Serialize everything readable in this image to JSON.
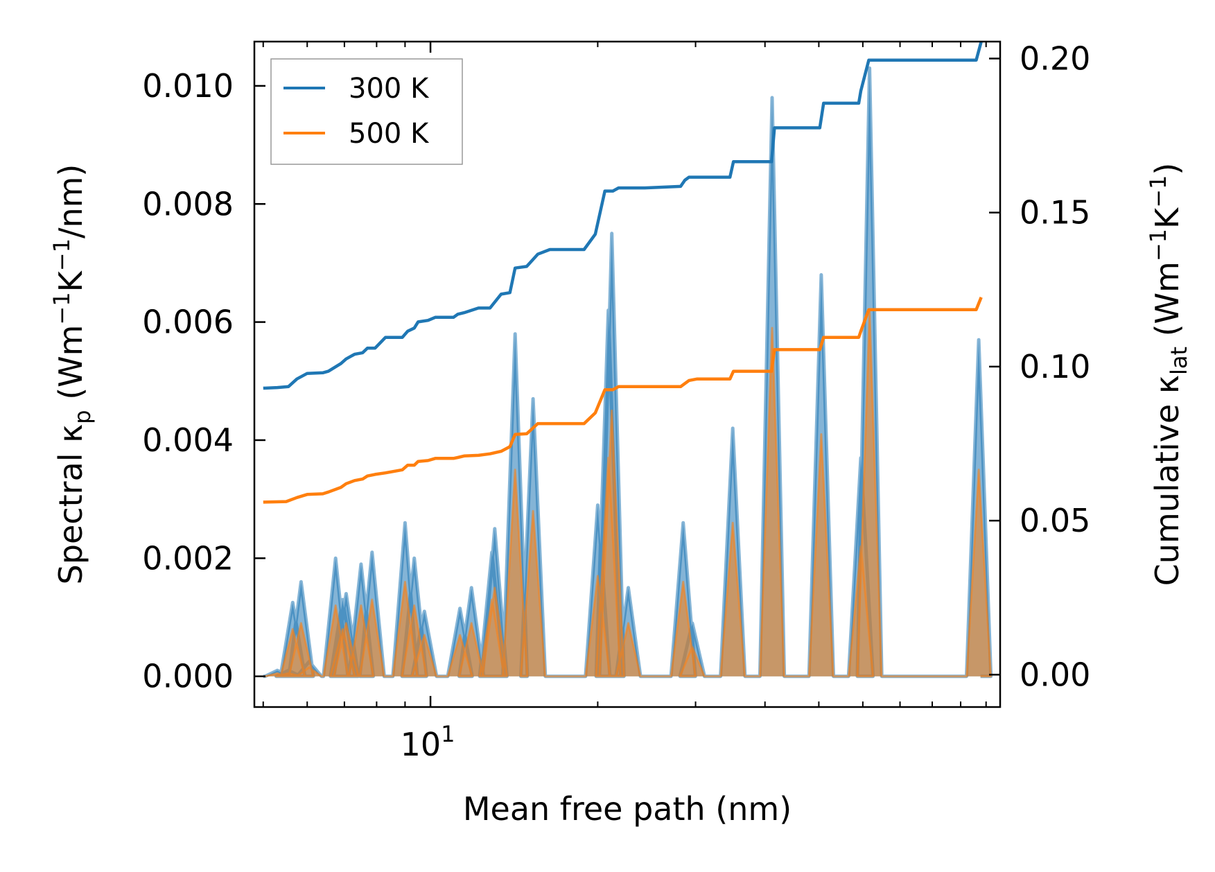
{
  "chart_data": {
    "type": "line",
    "xscale": "log",
    "xlabel": "Mean free path (nm)",
    "ylabel_left": {
      "main": "Spectral κ",
      "sub": "p",
      "unit_open": " (Wm",
      "s1": "−1",
      "mid": "K",
      "s2": "−1",
      "unit_close": "/nm)"
    },
    "ylabel_right": {
      "main": "Cumulative κ",
      "sub": "lat",
      "unit_open": " (Wm",
      "s1": "−1",
      "mid": "K",
      "s2": "−1",
      "unit_close": ")"
    },
    "xlim": [
      4.82,
      106
    ],
    "ylim_left": [
      -0.00052,
      0.01075
    ],
    "ylim_right": [
      -0.0105,
      0.2055
    ],
    "xticks": [
      {
        "base": "10",
        "exp": "1",
        "value": 10
      }
    ],
    "yticks_left": [
      {
        "value": 0.0,
        "label": "0.000"
      },
      {
        "value": 0.002,
        "label": "0.002"
      },
      {
        "value": 0.004,
        "label": "0.004"
      },
      {
        "value": 0.006,
        "label": "0.006"
      },
      {
        "value": 0.008,
        "label": "0.008"
      },
      {
        "value": 0.01,
        "label": "0.010"
      }
    ],
    "yticks_right": [
      {
        "value": 0.0,
        "label": "0.00"
      },
      {
        "value": 0.05,
        "label": "0.05"
      },
      {
        "value": 0.1,
        "label": "0.10"
      },
      {
        "value": 0.15,
        "label": "0.15"
      },
      {
        "value": 0.2,
        "label": "0.20"
      }
    ],
    "legend": {
      "placement": "upper-left",
      "entries": [
        {
          "label": "300 K",
          "color": "#1f77b4"
        },
        {
          "label": "500 K",
          "color": "#ff7f0e"
        }
      ]
    },
    "cumulative": [
      {
        "name": "300 K",
        "color": "#1f77b4",
        "x": [
          5.0,
          5.3,
          5.55,
          5.75,
          6.0,
          6.4,
          6.55,
          6.9,
          7.05,
          7.3,
          7.55,
          7.7,
          7.95,
          8.3,
          8.9,
          9.1,
          9.35,
          9.5,
          9.9,
          10.2,
          11.0,
          11.2,
          11.5,
          12.2,
          12.8,
          13.4,
          13.9,
          14.2,
          14.9,
          15.6,
          16.4,
          18.9,
          19.8,
          20.6,
          21.3,
          21.8,
          22.5,
          23.0,
          24.3,
          28.2,
          28.7,
          29.2,
          30.2,
          34.6,
          35.1,
          41.1,
          41.6,
          42.1,
          50.2,
          51.0,
          59.0,
          59.5,
          61.5,
          62.0,
          96.0,
          98.0
        ],
        "y": [
          0.093,
          0.0932,
          0.0935,
          0.096,
          0.0978,
          0.098,
          0.0985,
          0.101,
          0.1025,
          0.104,
          0.1045,
          0.106,
          0.106,
          0.1095,
          0.1095,
          0.1115,
          0.1125,
          0.1145,
          0.115,
          0.116,
          0.116,
          0.117,
          0.1175,
          0.119,
          0.119,
          0.1235,
          0.124,
          0.132,
          0.1325,
          0.1365,
          0.138,
          0.138,
          0.143,
          0.157,
          0.157,
          0.158,
          0.158,
          0.158,
          0.158,
          0.1585,
          0.1605,
          0.1615,
          0.1615,
          0.1615,
          0.1665,
          0.1665,
          0.1775,
          0.1775,
          0.1775,
          0.1855,
          0.1855,
          0.1895,
          0.1995,
          0.1995,
          0.1995,
          0.2055
        ]
      },
      {
        "name": "500 K",
        "color": "#ff7f0e",
        "x": [
          5.0,
          5.5,
          5.75,
          6.0,
          6.4,
          6.55,
          6.9,
          7.05,
          7.3,
          7.55,
          7.7,
          7.95,
          8.3,
          8.9,
          9.1,
          9.35,
          9.5,
          9.9,
          10.2,
          11.0,
          11.2,
          11.5,
          12.2,
          12.8,
          13.4,
          13.9,
          14.2,
          14.9,
          15.6,
          16.4,
          18.9,
          19.8,
          20.6,
          21.3,
          21.8,
          22.5,
          24.3,
          28.2,
          28.7,
          29.2,
          30.2,
          34.6,
          35.1,
          41.1,
          41.6,
          42.1,
          50.2,
          51.0,
          59.0,
          59.5,
          61.5,
          62.0,
          96.0,
          98.0
        ],
        "y": [
          0.056,
          0.0562,
          0.0575,
          0.0585,
          0.0587,
          0.0593,
          0.0608,
          0.062,
          0.063,
          0.0635,
          0.0645,
          0.065,
          0.0655,
          0.0665,
          0.068,
          0.068,
          0.0692,
          0.0695,
          0.0702,
          0.0702,
          0.0705,
          0.071,
          0.0712,
          0.0717,
          0.0725,
          0.074,
          0.078,
          0.0782,
          0.0815,
          0.0815,
          0.0815,
          0.085,
          0.0925,
          0.0925,
          0.0935,
          0.0935,
          0.0935,
          0.0935,
          0.0945,
          0.0955,
          0.096,
          0.096,
          0.0985,
          0.0985,
          0.1055,
          0.1055,
          0.1055,
          0.1095,
          0.1095,
          0.1115,
          0.1185,
          0.1185,
          0.1185,
          0.1225
        ]
      }
    ],
    "spectral": [
      {
        "name": "300 K",
        "color": "#1f77b4",
        "peaks": [
          [
            5.3,
            0.0001
          ],
          [
            5.55,
            0.0001
          ],
          [
            5.65,
            0.00125
          ],
          [
            5.85,
            0.0016
          ],
          [
            6.05,
            0.00025
          ],
          [
            6.75,
            0.002
          ],
          [
            6.95,
            0.0013
          ],
          [
            7.05,
            0.0014
          ],
          [
            7.5,
            0.0019
          ],
          [
            7.85,
            0.0021
          ],
          [
            9.0,
            0.0026
          ],
          [
            9.35,
            0.002
          ],
          [
            9.75,
            0.0011
          ],
          [
            11.3,
            0.00115
          ],
          [
            11.85,
            0.0015
          ],
          [
            12.9,
            0.0021
          ],
          [
            13.05,
            0.0025
          ],
          [
            14.2,
            0.0058
          ],
          [
            15.3,
            0.0047
          ],
          [
            20.0,
            0.0029
          ],
          [
            20.9,
            0.0062
          ],
          [
            21.2,
            0.0075
          ],
          [
            22.7,
            0.0015
          ],
          [
            28.5,
            0.0026
          ],
          [
            29.6,
            0.0009
          ],
          [
            35.0,
            0.0042
          ],
          [
            41.2,
            0.0098
          ],
          [
            50.5,
            0.0068
          ],
          [
            59.5,
            0.0037
          ],
          [
            61.7,
            0.0103
          ],
          [
            97.0,
            0.0057
          ]
        ]
      },
      {
        "name": "500 K",
        "color": "#ff7f0e",
        "peaks": [
          [
            5.3,
            5e-05
          ],
          [
            5.55,
            5e-05
          ],
          [
            5.65,
            0.0008
          ],
          [
            5.85,
            0.0009
          ],
          [
            6.05,
            0.00015
          ],
          [
            6.75,
            0.0012
          ],
          [
            6.95,
            0.0008
          ],
          [
            7.05,
            0.0009
          ],
          [
            7.5,
            0.0012
          ],
          [
            7.85,
            0.0013
          ],
          [
            9.0,
            0.0016
          ],
          [
            9.35,
            0.0012
          ],
          [
            9.75,
            0.0007
          ],
          [
            11.3,
            0.0007
          ],
          [
            11.85,
            0.0009
          ],
          [
            12.9,
            0.0013
          ],
          [
            13.05,
            0.0015
          ],
          [
            14.2,
            0.0035
          ],
          [
            15.3,
            0.0028
          ],
          [
            20.0,
            0.0017
          ],
          [
            20.9,
            0.0037
          ],
          [
            21.2,
            0.0045
          ],
          [
            22.7,
            0.0009
          ],
          [
            28.5,
            0.0016
          ],
          [
            29.6,
            0.0005
          ],
          [
            35.0,
            0.0026
          ],
          [
            41.2,
            0.0059
          ],
          [
            50.5,
            0.0041
          ],
          [
            59.5,
            0.0022
          ],
          [
            61.7,
            0.0062
          ],
          [
            97.0,
            0.0035
          ]
        ]
      }
    ]
  }
}
